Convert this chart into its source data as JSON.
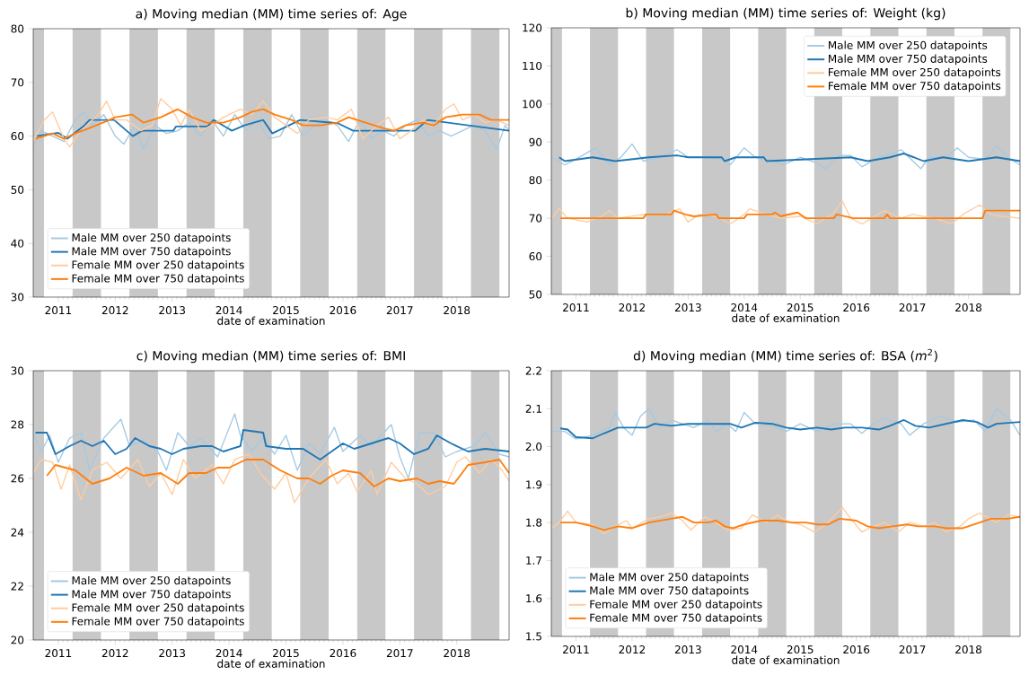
{
  "chart_data": [
    {
      "type": "line",
      "title": "a) Moving median (MM) time series of: Age",
      "xlabel": "date of examination",
      "xlim": [
        2010.56,
        2018.92
      ],
      "xticks": [
        2011,
        2012,
        2013,
        2014,
        2015,
        2016,
        2017,
        2018
      ],
      "ylim": [
        30,
        80
      ],
      "yticks": [
        30,
        40,
        50,
        60,
        70,
        80
      ],
      "legend": "bottom left",
      "bands": [
        {
          "axis": "x",
          "from": 2010.56,
          "to": 2010.75,
          "color": "#c8c8c8"
        },
        {
          "axis": "x",
          "from": 2011.25,
          "to": 2011.75,
          "color": "#c8c8c8"
        },
        {
          "axis": "x",
          "from": 2012.25,
          "to": 2012.75,
          "color": "#c8c8c8"
        },
        {
          "axis": "x",
          "from": 2013.25,
          "to": 2013.75,
          "color": "#c8c8c8"
        },
        {
          "axis": "x",
          "from": 2014.25,
          "to": 2014.75,
          "color": "#c8c8c8"
        },
        {
          "axis": "x",
          "from": 2015.25,
          "to": 2015.75,
          "color": "#c8c8c8"
        },
        {
          "axis": "x",
          "from": 2016.25,
          "to": 2016.75,
          "color": "#c8c8c8"
        },
        {
          "axis": "x",
          "from": 2017.25,
          "to": 2017.75,
          "color": "#c8c8c8"
        },
        {
          "axis": "x",
          "from": 2018.25,
          "to": 2018.75,
          "color": "#c8c8c8"
        }
      ],
      "series": [
        {
          "name": "Male MM over 250 datapoints",
          "color": "#a5c9e1",
          "x": [
            2010.56,
            2010.7,
            2010.9,
            2011.1,
            2011.3,
            2011.45,
            2011.6,
            2011.8,
            2012.0,
            2012.15,
            2012.35,
            2012.5,
            2012.7,
            2012.9,
            2013.1,
            2013.3,
            2013.5,
            2013.7,
            2013.9,
            2014.1,
            2014.3,
            2014.5,
            2014.7,
            2014.9,
            2015.1,
            2015.3,
            2015.5,
            2015.7,
            2015.9,
            2016.1,
            2016.3,
            2016.5,
            2016.7,
            2016.9,
            2017.1,
            2017.3,
            2017.5,
            2017.7,
            2017.9,
            2018.1,
            2018.3,
            2018.5,
            2018.7,
            2018.85,
            2018.92
          ],
          "values": [
            58,
            61,
            60,
            59,
            63,
            64.5,
            62,
            64,
            60,
            58.5,
            62,
            57.5,
            62,
            60.5,
            61,
            62.5,
            60,
            63,
            60,
            64,
            61,
            63,
            59.5,
            60,
            64,
            60,
            62,
            63,
            62,
            59,
            63,
            59.5,
            61,
            60,
            62,
            63,
            60,
            61,
            60,
            61,
            62,
            61,
            57.5,
            62,
            61
          ]
        },
        {
          "name": "Male MM over 750 datapoints",
          "color": "#1f77b4",
          "x": [
            2010.62,
            2011.0,
            2011.16,
            2011.44,
            2011.55,
            2011.98,
            2012.09,
            2012.31,
            2012.47,
            2013.02,
            2013.07,
            2013.62,
            2013.73,
            2014.05,
            2014.27,
            2014.6,
            2014.76,
            2015.25,
            2015.91,
            2016.18,
            2017.27,
            2017.49,
            2018.92
          ],
          "values": [
            60,
            60.6,
            59.5,
            61.8,
            63,
            63,
            62,
            60,
            61,
            61,
            61.8,
            61.8,
            63,
            61,
            62,
            63,
            60.5,
            63,
            62.4,
            61,
            61,
            63,
            61
          ]
        },
        {
          "name": "Female MM over 250 datapoints",
          "color": "#ffcc9f",
          "x": [
            2010.56,
            2010.75,
            2010.9,
            2011.1,
            2011.2,
            2011.4,
            2011.7,
            2011.85,
            2012.0,
            2012.2,
            2012.45,
            2012.65,
            2012.8,
            2013.0,
            2013.15,
            2013.3,
            2013.5,
            2013.7,
            2013.9,
            2014.2,
            2014.4,
            2014.6,
            2014.8,
            2015.0,
            2015.2,
            2015.4,
            2015.7,
            2015.9,
            2016.15,
            2016.35,
            2016.6,
            2016.8,
            2017.0,
            2017.2,
            2017.4,
            2017.6,
            2017.8,
            2017.95,
            2018.1,
            2018.3,
            2018.5,
            2018.7,
            2018.92
          ],
          "values": [
            59,
            63,
            64.5,
            59.5,
            58,
            61,
            64,
            66.5,
            63,
            63,
            61,
            62,
            67,
            65,
            62,
            65,
            61,
            62,
            63.5,
            65,
            64,
            66.5,
            63.5,
            62,
            60.5,
            63,
            63.5,
            63,
            65,
            59.5,
            62,
            63.5,
            59.5,
            61,
            63,
            62,
            65,
            66,
            63,
            64,
            62.5,
            63,
            62
          ]
        },
        {
          "name": "Female MM over 750 datapoints",
          "color": "#ff7f0e",
          "x": [
            2010.6,
            2010.9,
            2011.1,
            2011.3,
            2011.55,
            2011.9,
            2012.0,
            2012.3,
            2012.5,
            2012.8,
            2013.1,
            2013.35,
            2013.6,
            2013.9,
            2014.2,
            2014.4,
            2014.6,
            2014.8,
            2015.1,
            2015.3,
            2015.6,
            2015.9,
            2016.1,
            2016.4,
            2016.7,
            2016.9,
            2017.1,
            2017.4,
            2017.6,
            2017.8,
            2018.1,
            2018.4,
            2018.6,
            2018.92
          ],
          "values": [
            59.5,
            60.5,
            59.5,
            60.5,
            61.5,
            63,
            63.5,
            64,
            62.5,
            63.5,
            65,
            63.5,
            62.5,
            62.5,
            63.5,
            64.5,
            65,
            64,
            63,
            62,
            62,
            62.5,
            63.5,
            62.5,
            61.5,
            61,
            62,
            62.5,
            62,
            63.5,
            64,
            64,
            63,
            63
          ]
        }
      ]
    },
    {
      "type": "line",
      "title": "b) Moving median (MM) time series of: Weight (kg)",
      "xlabel": "date of examination",
      "xlim": [
        2010.56,
        2018.92
      ],
      "xticks": [
        2011,
        2012,
        2013,
        2014,
        2015,
        2016,
        2017,
        2018
      ],
      "ylim": [
        50,
        120
      ],
      "yticks": [
        50,
        60,
        70,
        80,
        90,
        100,
        110,
        120
      ],
      "legend": "top right",
      "bands": [
        {
          "axis": "x",
          "from": 2010.56,
          "to": 2010.75,
          "color": "#c8c8c8"
        },
        {
          "axis": "x",
          "from": 2011.25,
          "to": 2011.75,
          "color": "#c8c8c8"
        },
        {
          "axis": "x",
          "from": 2012.25,
          "to": 2012.75,
          "color": "#c8c8c8"
        },
        {
          "axis": "x",
          "from": 2013.25,
          "to": 2013.75,
          "color": "#c8c8c8"
        },
        {
          "axis": "x",
          "from": 2014.25,
          "to": 2014.75,
          "color": "#c8c8c8"
        },
        {
          "axis": "x",
          "from": 2015.25,
          "to": 2015.75,
          "color": "#c8c8c8"
        },
        {
          "axis": "x",
          "from": 2016.25,
          "to": 2016.75,
          "color": "#c8c8c8"
        },
        {
          "axis": "x",
          "from": 2017.25,
          "to": 2017.75,
          "color": "#c8c8c8"
        },
        {
          "axis": "x",
          "from": 2018.25,
          "to": 2018.75,
          "color": "#c8c8c8"
        }
      ],
      "series": [
        {
          "name": "Male MM over 250 datapoints",
          "color": "#a5c9e1",
          "x": [
            2010.57,
            2010.8,
            2011.0,
            2011.35,
            2011.6,
            2011.8,
            2012.0,
            2012.2,
            2012.5,
            2012.8,
            2013.0,
            2013.3,
            2013.6,
            2013.75,
            2014.0,
            2014.2,
            2014.5,
            2014.7,
            2015.0,
            2015.3,
            2015.45,
            2015.7,
            2015.9,
            2016.1,
            2016.4,
            2016.8,
            2017.15,
            2017.3,
            2017.6,
            2017.8,
            2018.0,
            2018.3,
            2018.5,
            2018.7,
            2018.92
          ],
          "values": [
            86,
            84,
            85.5,
            88.5,
            84,
            86,
            89.5,
            85,
            86,
            88,
            86,
            86,
            85.5,
            84,
            88.5,
            86,
            85,
            84,
            86,
            84.5,
            83,
            86.5,
            86.5,
            83.5,
            86,
            88,
            83,
            86,
            86,
            88.5,
            86,
            85.5,
            89,
            86,
            84
          ]
        },
        {
          "name": "Male MM over 750 datapoints",
          "color": "#1f77b4",
          "x": [
            2010.7,
            2010.8,
            2011.3,
            2011.7,
            2012.3,
            2012.8,
            2013.0,
            2013.6,
            2013.65,
            2013.85,
            2014.35,
            2014.4,
            2015.9,
            2016.2,
            2016.6,
            2016.85,
            2017.2,
            2017.55,
            2018.0,
            2018.5,
            2018.92
          ],
          "values": [
            86,
            85,
            86,
            85,
            86,
            86.5,
            86,
            86,
            85,
            86,
            86,
            85,
            86,
            85,
            86,
            87,
            85,
            86,
            85,
            86,
            85
          ]
        },
        {
          "name": "Female MM over 250 datapoints",
          "color": "#ffcc9f",
          "x": [
            2010.57,
            2010.7,
            2010.85,
            2011.2,
            2011.45,
            2011.6,
            2011.75,
            2012.2,
            2012.6,
            2012.85,
            2013.0,
            2013.2,
            2013.5,
            2013.75,
            2014.0,
            2014.1,
            2014.4,
            2014.65,
            2015.0,
            2015.3,
            2015.6,
            2015.75,
            2015.9,
            2016.1,
            2016.5,
            2016.8,
            2017.0,
            2017.4,
            2017.7,
            2017.9,
            2018.2,
            2018.4,
            2018.6,
            2018.92
          ],
          "values": [
            70,
            72.5,
            70,
            69,
            70.5,
            72,
            70,
            71,
            71,
            72.5,
            69,
            71,
            70.5,
            68.5,
            71,
            72.5,
            71,
            70,
            70.5,
            68.5,
            71.5,
            74.5,
            70,
            68.5,
            72,
            70,
            71,
            70,
            68.5,
            71,
            73.5,
            71,
            70.5,
            70
          ]
        },
        {
          "name": "Female MM over 750 datapoints",
          "color": "#ff7f0e",
          "x": [
            2010.72,
            2012.2,
            2012.25,
            2012.7,
            2012.75,
            2012.95,
            2013.1,
            2013.5,
            2013.55,
            2014.0,
            2014.05,
            2014.5,
            2014.55,
            2014.65,
            2014.95,
            2015.1,
            2015.6,
            2015.65,
            2015.95,
            2016.5,
            2016.55,
            2016.6,
            2018.25,
            2018.3,
            2018.92
          ],
          "values": [
            70,
            70,
            71,
            71,
            72,
            71,
            70.5,
            71,
            70,
            70,
            71,
            71,
            71.5,
            70.5,
            71.5,
            70,
            70,
            71,
            70,
            70,
            71,
            70,
            70,
            72,
            72
          ]
        }
      ]
    },
    {
      "type": "line",
      "title": "c) Moving median (MM) time series of: BMI",
      "xlabel": "date of examination",
      "xlim": [
        2010.56,
        2018.92
      ],
      "xticks": [
        2011,
        2012,
        2013,
        2014,
        2015,
        2016,
        2017,
        2018
      ],
      "ylim": [
        20,
        30
      ],
      "yticks": [
        20,
        22,
        24,
        26,
        28,
        30
      ],
      "legend": "bottom left",
      "bands": [
        {
          "axis": "x",
          "from": 2010.56,
          "to": 2010.75,
          "color": "#c8c8c8"
        },
        {
          "axis": "x",
          "from": 2011.25,
          "to": 2011.75,
          "color": "#c8c8c8"
        },
        {
          "axis": "x",
          "from": 2012.25,
          "to": 2012.75,
          "color": "#c8c8c8"
        },
        {
          "axis": "x",
          "from": 2013.25,
          "to": 2013.75,
          "color": "#c8c8c8"
        },
        {
          "axis": "x",
          "from": 2014.25,
          "to": 2014.75,
          "color": "#c8c8c8"
        },
        {
          "axis": "x",
          "from": 2015.25,
          "to": 2015.75,
          "color": "#c8c8c8"
        },
        {
          "axis": "x",
          "from": 2016.25,
          "to": 2016.75,
          "color": "#c8c8c8"
        },
        {
          "axis": "x",
          "from": 2017.25,
          "to": 2017.75,
          "color": "#c8c8c8"
        },
        {
          "axis": "x",
          "from": 2018.25,
          "to": 2018.75,
          "color": "#c8c8c8"
        }
      ],
      "series": [
        {
          "name": "Male MM over 250 datapoints",
          "color": "#a5c9e1",
          "x": [
            2010.56,
            2010.7,
            2010.85,
            2011.0,
            2011.2,
            2011.4,
            2011.55,
            2011.8,
            2012.1,
            2012.25,
            2012.5,
            2012.75,
            2012.9,
            2013.1,
            2013.3,
            2013.5,
            2013.8,
            2014.1,
            2014.2,
            2014.4,
            2014.6,
            2014.8,
            2015.0,
            2015.2,
            2015.4,
            2015.6,
            2015.85,
            2016.0,
            2016.3,
            2016.5,
            2016.85,
            2017.0,
            2017.15,
            2017.35,
            2017.6,
            2017.8,
            2018.0,
            2018.3,
            2018.5,
            2018.75,
            2018.92
          ],
          "values": [
            27.7,
            27.0,
            27.6,
            26.6,
            27.5,
            27.7,
            26.3,
            27.5,
            28.2,
            27.2,
            27.4,
            27.0,
            26.3,
            27.7,
            27.2,
            27.5,
            26.8,
            28.4,
            27.6,
            27.0,
            27.5,
            26.9,
            27.6,
            26.3,
            27.3,
            26.9,
            27.9,
            27.0,
            27.6,
            27.2,
            28.0,
            26.8,
            26.0,
            27.7,
            27.7,
            26.8,
            27.0,
            27.2,
            27.7,
            26.9,
            26.8
          ]
        },
        {
          "name": "Male MM over 750 datapoints",
          "color": "#1f77b4",
          "x": [
            2010.6,
            2010.8,
            2010.95,
            2011.2,
            2011.4,
            2011.6,
            2011.8,
            2012.0,
            2012.2,
            2012.35,
            2012.6,
            2012.8,
            2013.0,
            2013.2,
            2013.5,
            2013.7,
            2013.9,
            2014.2,
            2014.25,
            2014.6,
            2014.65,
            2015.0,
            2015.3,
            2015.6,
            2015.8,
            2016.0,
            2016.2,
            2016.5,
            2016.8,
            2017.0,
            2017.25,
            2017.5,
            2017.65,
            2017.9,
            2018.2,
            2018.5,
            2018.92
          ],
          "values": [
            27.7,
            27.7,
            26.9,
            27.2,
            27.4,
            27.2,
            27.4,
            26.9,
            27.1,
            27.5,
            27.2,
            27.1,
            26.9,
            27.1,
            27.2,
            27.2,
            27.0,
            27.2,
            27.8,
            27.7,
            27.2,
            27.1,
            27.1,
            26.7,
            27.0,
            27.3,
            27.1,
            27.3,
            27.5,
            27.3,
            26.9,
            27.1,
            27.6,
            27.3,
            27.0,
            27.1,
            27.0
          ]
        },
        {
          "name": "Female MM over 250 datapoints",
          "color": "#ffcc9f",
          "x": [
            2010.56,
            2010.7,
            2010.9,
            2011.05,
            2011.2,
            2011.4,
            2011.6,
            2011.85,
            2012.1,
            2012.4,
            2012.6,
            2012.8,
            2013.0,
            2013.2,
            2013.4,
            2013.7,
            2013.9,
            2014.1,
            2014.35,
            2014.55,
            2014.8,
            2015.0,
            2015.15,
            2015.4,
            2015.7,
            2015.9,
            2016.1,
            2016.25,
            2016.5,
            2016.6,
            2016.85,
            2017.1,
            2017.3,
            2017.5,
            2017.8,
            2018.0,
            2018.15,
            2018.4,
            2018.6,
            2018.8,
            2018.92
          ],
          "values": [
            26.2,
            26.7,
            26.6,
            25.6,
            26.5,
            25.2,
            26.3,
            26.6,
            26.0,
            26.7,
            25.7,
            26.2,
            25.4,
            26.7,
            26.0,
            26.5,
            25.8,
            26.7,
            26.9,
            26.2,
            25.6,
            26.2,
            25.1,
            26.0,
            26.7,
            25.8,
            26.2,
            25.5,
            26.3,
            25.4,
            26.6,
            26.0,
            25.8,
            25.4,
            25.7,
            26.6,
            26.8,
            26.2,
            26.7,
            26.3,
            25.9
          ]
        },
        {
          "name": "Female MM over 750 datapoints",
          "color": "#ff7f0e",
          "x": [
            2010.8,
            2010.95,
            2011.3,
            2011.6,
            2011.9,
            2012.2,
            2012.5,
            2012.8,
            2013.1,
            2013.3,
            2013.6,
            2013.8,
            2014.0,
            2014.3,
            2014.6,
            2014.9,
            2015.2,
            2015.4,
            2015.6,
            2015.8,
            2016.0,
            2016.3,
            2016.55,
            2016.8,
            2017.0,
            2017.3,
            2017.5,
            2017.7,
            2017.95,
            2018.2,
            2018.5,
            2018.75,
            2018.92
          ],
          "values": [
            26.1,
            26.5,
            26.3,
            25.8,
            26.0,
            26.4,
            26.1,
            26.2,
            25.8,
            26.2,
            26.2,
            26.4,
            26.4,
            26.7,
            26.7,
            26.3,
            26.0,
            26.0,
            25.8,
            26.1,
            26.3,
            26.2,
            25.7,
            26.0,
            25.9,
            26.0,
            25.8,
            25.9,
            25.8,
            26.5,
            26.6,
            26.7,
            26.2
          ]
        }
      ]
    },
    {
      "type": "line",
      "title": "d) Moving median (MM) time series of: BSA (*m*$^{2}$)",
      "xlabel": "date of examination",
      "xlim": [
        2010.56,
        2018.92
      ],
      "xticks": [
        2011,
        2012,
        2013,
        2014,
        2015,
        2016,
        2017,
        2018
      ],
      "ylim": [
        1.5,
        2.2
      ],
      "yticks": [
        1.5,
        1.6,
        1.7,
        1.8,
        1.9,
        {
          "value": 2,
          "label": "2.0"
        },
        2.1,
        2.2
      ],
      "legend": "bottom left",
      "bands": [
        {
          "axis": "x",
          "from": 2010.56,
          "to": 2010.75,
          "color": "#c8c8c8"
        },
        {
          "axis": "x",
          "from": 2011.25,
          "to": 2011.75,
          "color": "#c8c8c8"
        },
        {
          "axis": "x",
          "from": 2012.25,
          "to": 2012.75,
          "color": "#c8c8c8"
        },
        {
          "axis": "x",
          "from": 2013.25,
          "to": 2013.75,
          "color": "#c8c8c8"
        },
        {
          "axis": "x",
          "from": 2014.25,
          "to": 2014.75,
          "color": "#c8c8c8"
        },
        {
          "axis": "x",
          "from": 2015.25,
          "to": 2015.75,
          "color": "#c8c8c8"
        },
        {
          "axis": "x",
          "from": 2016.25,
          "to": 2016.75,
          "color": "#c8c8c8"
        },
        {
          "axis": "x",
          "from": 2017.25,
          "to": 2017.75,
          "color": "#c8c8c8"
        },
        {
          "axis": "x",
          "from": 2018.25,
          "to": 2018.75,
          "color": "#c8c8c8"
        }
      ],
      "series": [
        {
          "name": "Male MM over 250 datapoints",
          "color": "#a5c9e1",
          "x": [
            2010.57,
            2010.8,
            2011.0,
            2011.3,
            2011.6,
            2011.7,
            2011.85,
            2012.0,
            2012.15,
            2012.3,
            2012.5,
            2012.7,
            2012.9,
            2013.1,
            2013.35,
            2013.5,
            2013.7,
            2013.85,
            2014.0,
            2014.2,
            2014.5,
            2014.75,
            2015.0,
            2015.3,
            2015.6,
            2015.9,
            2016.1,
            2016.3,
            2016.5,
            2016.8,
            2016.95,
            2017.2,
            2017.5,
            2017.8,
            2018.1,
            2018.3,
            2018.5,
            2018.75,
            2018.92
          ],
          "values": [
            2.04,
            2.04,
            2.02,
            2.03,
            2.05,
            2.09,
            2.05,
            2.03,
            2.08,
            2.1,
            2.05,
            2.07,
            2.06,
            2.05,
            2.07,
            2.04,
            2.06,
            2.04,
            2.09,
            2.06,
            2.055,
            2.04,
            2.06,
            2.04,
            2.06,
            2.06,
            2.035,
            2.06,
            2.075,
            2.06,
            2.03,
            2.06,
            2.08,
            2.065,
            2.07,
            2.04,
            2.1,
            2.07,
            2.03
          ]
        },
        {
          "name": "Male MM over 750 datapoints",
          "color": "#1f77b4",
          "x": [
            2010.72,
            2010.85,
            2011.0,
            2011.3,
            2011.5,
            2011.75,
            2012.0,
            2012.25,
            2012.4,
            2012.7,
            2013.0,
            2013.3,
            2013.6,
            2013.75,
            2013.95,
            2014.2,
            2014.5,
            2014.75,
            2015.0,
            2015.3,
            2015.55,
            2015.8,
            2016.1,
            2016.4,
            2016.6,
            2016.85,
            2017.05,
            2017.3,
            2017.6,
            2017.9,
            2018.15,
            2018.35,
            2018.5,
            2018.92
          ],
          "values": [
            2.048,
            2.045,
            2.025,
            2.022,
            2.035,
            2.05,
            2.05,
            2.05,
            2.06,
            2.055,
            2.06,
            2.06,
            2.06,
            2.06,
            2.05,
            2.063,
            2.06,
            2.05,
            2.045,
            2.05,
            2.045,
            2.05,
            2.05,
            2.045,
            2.055,
            2.07,
            2.055,
            2.05,
            2.06,
            2.07,
            2.065,
            2.05,
            2.06,
            2.065
          ]
        },
        {
          "name": "Female MM over 250 datapoints",
          "color": "#ffcc9f",
          "x": [
            2010.57,
            2010.7,
            2010.85,
            2011.0,
            2011.3,
            2011.5,
            2011.7,
            2011.9,
            2012.0,
            2012.3,
            2012.5,
            2012.7,
            2012.9,
            2013.05,
            2013.3,
            2013.5,
            2013.7,
            2013.95,
            2014.15,
            2014.4,
            2014.6,
            2014.8,
            2015.0,
            2015.25,
            2015.5,
            2015.75,
            2015.9,
            2016.1,
            2016.3,
            2016.5,
            2016.75,
            2016.95,
            2017.2,
            2017.4,
            2017.6,
            2017.85,
            2018.0,
            2018.2,
            2018.5,
            2018.7,
            2018.92
          ],
          "values": [
            1.785,
            1.8,
            1.83,
            1.8,
            1.795,
            1.77,
            1.79,
            1.805,
            1.785,
            1.81,
            1.815,
            1.825,
            1.805,
            1.78,
            1.815,
            1.8,
            1.78,
            1.785,
            1.82,
            1.8,
            1.82,
            1.8,
            1.795,
            1.775,
            1.8,
            1.84,
            1.81,
            1.775,
            1.79,
            1.8,
            1.775,
            1.8,
            1.79,
            1.8,
            1.775,
            1.79,
            1.81,
            1.825,
            1.8,
            1.82,
            1.815
          ]
        },
        {
          "name": "Female MM over 750 datapoints",
          "color": "#ff7f0e",
          "x": [
            2010.72,
            2011.0,
            2011.3,
            2011.5,
            2011.75,
            2012.0,
            2012.3,
            2012.7,
            2012.9,
            2013.1,
            2013.35,
            2013.5,
            2013.65,
            2013.8,
            2014.0,
            2014.3,
            2014.6,
            2014.85,
            2015.1,
            2015.3,
            2015.5,
            2015.7,
            2016.0,
            2016.2,
            2016.4,
            2016.65,
            2016.9,
            2017.1,
            2017.4,
            2017.6,
            2017.9,
            2018.2,
            2018.4,
            2018.7,
            2018.92
          ],
          "values": [
            1.8,
            1.8,
            1.79,
            1.78,
            1.79,
            1.785,
            1.8,
            1.81,
            1.815,
            1.8,
            1.8,
            1.805,
            1.79,
            1.785,
            1.795,
            1.805,
            1.805,
            1.8,
            1.8,
            1.795,
            1.795,
            1.81,
            1.805,
            1.79,
            1.785,
            1.79,
            1.795,
            1.79,
            1.79,
            1.785,
            1.785,
            1.8,
            1.81,
            1.81,
            1.815
          ]
        }
      ]
    }
  ]
}
